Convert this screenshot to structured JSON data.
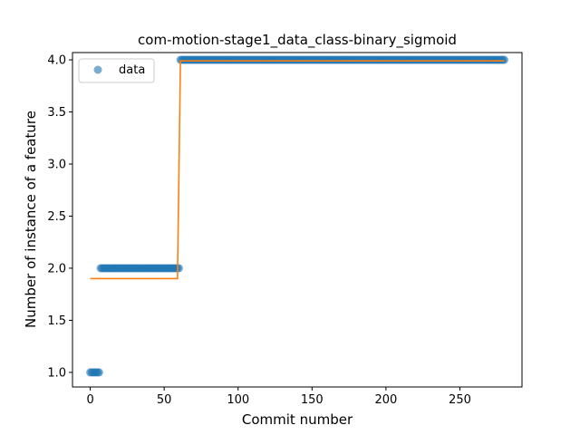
{
  "chart_data": {
    "type": "scatter",
    "title": "com-motion-stage1_data_class-binary_sigmoid",
    "xlabel": "Commit number",
    "ylabel": "Number of instance of a feature",
    "xlim": [
      -12,
      292
    ],
    "ylim": [
      0.86,
      4.07
    ],
    "xticks": [
      0,
      50,
      100,
      150,
      200,
      250
    ],
    "yticks": [
      1.0,
      1.5,
      2.0,
      2.5,
      3.0,
      3.5,
      4.0
    ],
    "grid": false,
    "legend": {
      "placement": "top-left",
      "entries": [
        "data"
      ]
    },
    "series": [
      {
        "name": "data",
        "kind": "scatter",
        "color": "#1f77b4",
        "segments": [
          {
            "x_start": 0,
            "x_end": 6,
            "y": 1.0
          },
          {
            "x_start": 7,
            "x_end": 60,
            "y": 2.0
          },
          {
            "x_start": 61,
            "x_end": 280,
            "y": 4.0
          }
        ]
      },
      {
        "kind": "line",
        "color": "#ff7f0e",
        "points": [
          [
            0,
            1.9
          ],
          [
            59,
            1.9
          ],
          [
            61,
            3.99
          ],
          [
            280,
            3.99
          ]
        ]
      }
    ]
  }
}
